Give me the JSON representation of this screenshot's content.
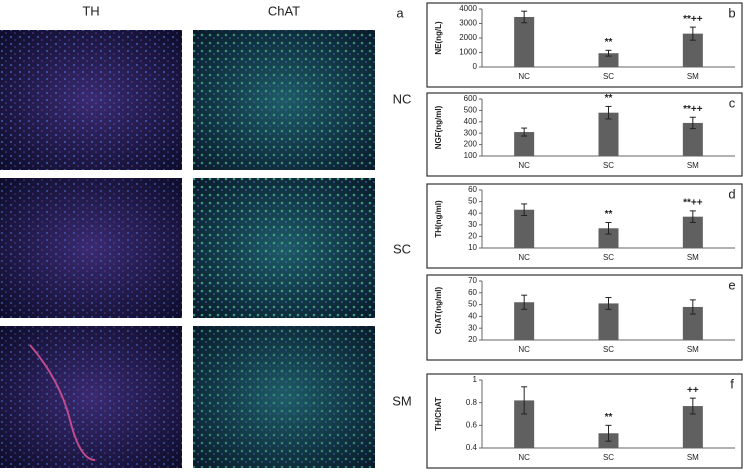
{
  "figure": {
    "column_labels": [
      "TH",
      "ChAT"
    ],
    "panel_label": "a",
    "row_labels": [
      "NC",
      "SC",
      "SM"
    ]
  },
  "chart_data": [
    {
      "type": "bar",
      "panel": "b",
      "y_label": "NE(ng/L)",
      "categories": [
        "NC",
        "SC",
        "SM"
      ],
      "values": [
        3450,
        950,
        2300
      ],
      "errors": [
        400,
        200,
        450
      ],
      "color": "#606060",
      "ylim": [
        0,
        4000
      ],
      "yticks": [
        0,
        1000,
        2000,
        3000,
        4000
      ],
      "annotations": [
        {
          "x": "SC",
          "text": "**"
        },
        {
          "x": "SM",
          "text": "**++"
        }
      ]
    },
    {
      "type": "bar",
      "panel": "c",
      "y_label": "NGF(ng/ml)",
      "categories": [
        "NC",
        "SC",
        "SM"
      ],
      "values": [
        310,
        480,
        390
      ],
      "errors": [
        35,
        55,
        50
      ],
      "color": "#606060",
      "ylim": [
        100,
        600
      ],
      "yticks": [
        100,
        200,
        300,
        400,
        500,
        600
      ],
      "annotations": [
        {
          "x": "SC",
          "text": "**"
        },
        {
          "x": "SM",
          "text": "**++"
        }
      ]
    },
    {
      "type": "bar",
      "panel": "d",
      "y_label": "TH(ng/ml)",
      "categories": [
        "NC",
        "SC",
        "SM"
      ],
      "values": [
        43,
        27,
        37
      ],
      "errors": [
        5,
        5,
        5
      ],
      "color": "#606060",
      "ylim": [
        10,
        60
      ],
      "yticks": [
        10,
        20,
        30,
        40,
        50,
        60
      ],
      "annotations": [
        {
          "x": "SC",
          "text": "**"
        },
        {
          "x": "SM",
          "text": "**++"
        }
      ]
    },
    {
      "type": "bar",
      "panel": "e",
      "y_label": "ChAT(ng/ml)",
      "categories": [
        "NC",
        "SC",
        "SM"
      ],
      "values": [
        52,
        51,
        48
      ],
      "errors": [
        6,
        5,
        6
      ],
      "color": "#606060",
      "ylim": [
        20,
        70
      ],
      "yticks": [
        20,
        30,
        40,
        50,
        60,
        70
      ],
      "annotations": []
    },
    {
      "type": "bar",
      "panel": "f",
      "y_label": "TH/ChAT",
      "categories": [
        "NC",
        "SC",
        "SM"
      ],
      "values": [
        0.82,
        0.53,
        0.77
      ],
      "errors": [
        0.12,
        0.07,
        0.07
      ],
      "color": "#606060",
      "ylim": [
        0.4,
        1
      ],
      "yticks": [
        0.4,
        0.6,
        0.8,
        1
      ],
      "annotations": [
        {
          "x": "SC",
          "text": "**"
        },
        {
          "x": "SM",
          "text": "++"
        }
      ]
    }
  ]
}
